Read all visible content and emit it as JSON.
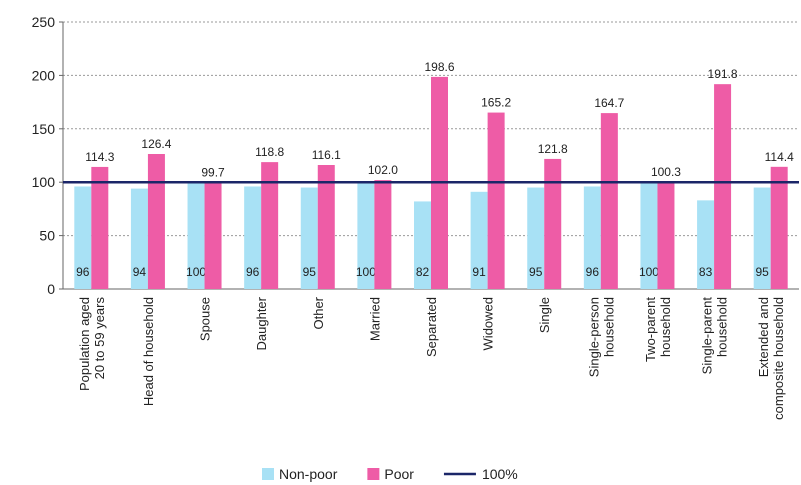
{
  "chart_data": {
    "type": "bar",
    "categories": [
      "Population aged\n20 to 59 years",
      "Head of household",
      "Spouse",
      "Daughter",
      "Other",
      "Married",
      "Separated",
      "Widowed",
      "Single",
      "Single-person\nhousehold",
      "Two-parent\nhousehold",
      "Single-parent\nhousehold",
      "Extended and\ncomposite household"
    ],
    "series": [
      {
        "name": "Non-poor",
        "color": "#a8e1f5",
        "values": [
          96,
          94,
          100,
          96,
          95,
          100,
          82,
          91,
          95,
          96,
          100,
          83,
          95
        ]
      },
      {
        "name": "Poor",
        "color": "#ee5ca6",
        "values": [
          114.3,
          126.4,
          99.7,
          118.8,
          116.1,
          102.0,
          198.6,
          165.2,
          121.8,
          164.7,
          100.3,
          191.8,
          114.4
        ],
        "value_labels": [
          "114.3",
          "126.4",
          "99.7",
          "118.8",
          "116.1",
          "102.0",
          "198.6",
          "165.2",
          "121.8",
          "164.7",
          "100.3",
          "191.8",
          "114.4"
        ]
      }
    ],
    "reference_line": {
      "name": "100%",
      "value": 100,
      "color": "#1b2668"
    },
    "ylim": [
      0,
      250
    ],
    "yticks": [
      0,
      50,
      100,
      150,
      200,
      250
    ],
    "grid": true,
    "legend": "bottom"
  }
}
